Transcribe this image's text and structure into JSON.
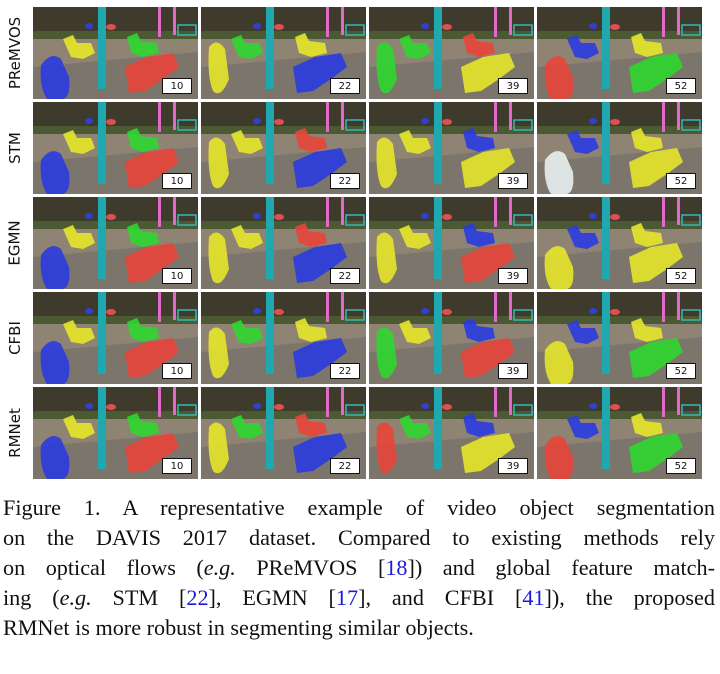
{
  "figure": {
    "rows": [
      {
        "method": "PReMVOS",
        "frames": [
          "10",
          "22",
          "39",
          "52"
        ]
      },
      {
        "method": "STM",
        "frames": [
          "10",
          "22",
          "39",
          "52"
        ]
      },
      {
        "method": "EGMN",
        "frames": [
          "10",
          "22",
          "39",
          "52"
        ]
      },
      {
        "method": "CFBI",
        "frames": [
          "10",
          "22",
          "39",
          "52"
        ]
      },
      {
        "method": "RMNet",
        "frames": [
          "10",
          "22",
          "39",
          "52"
        ]
      }
    ],
    "mask_colors": {
      "blue": "#2a3be0",
      "yellow": "#e6e62a",
      "red": "#e8453a",
      "green": "#2fd62f",
      "pole": "#1fa8b0"
    }
  },
  "caption": {
    "line1": "Figure 1. A representative example of video object segmentation",
    "line2": "on the DAVIS 2017 dataset.  Compared to existing methods rely",
    "line3_a": "on optical flows (",
    "line3_eg": "e.g.",
    "line3_b": " PReMVOS [",
    "line3_cite": "18",
    "line3_c": "]) and global feature match-",
    "line4_a": "ing (",
    "line4_eg": "e.g.",
    "line4_b": "  STM [",
    "line4_cite1": "22",
    "line4_c": "], EGMN [",
    "line4_cite2": "17",
    "line4_d": "], and CFBI [",
    "line4_cite3": "41",
    "line4_e": "]), the proposed",
    "line5": "RMNet is more robust in segmenting similar objects."
  }
}
